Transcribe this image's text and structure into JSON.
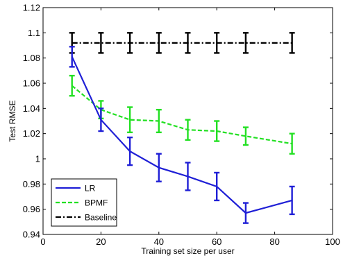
{
  "chart_data": {
    "type": "line",
    "title": "",
    "xlabel": "Training set size per user",
    "ylabel": "Test RMSE",
    "xlim": [
      0,
      100
    ],
    "ylim": [
      0.94,
      1.12
    ],
    "xticks": [
      0,
      20,
      40,
      60,
      80,
      100
    ],
    "xtick_labels": [
      "0",
      "20",
      "40",
      "60",
      "80",
      "100"
    ],
    "yticks": [
      0.94,
      0.96,
      0.98,
      1.0,
      1.02,
      1.04,
      1.06,
      1.08,
      1.1,
      1.12
    ],
    "ytick_labels": [
      "0.94",
      "0.96",
      "0.98",
      "1",
      "1.02",
      "1.04",
      "1.06",
      "1.08",
      "1.1",
      "1.12"
    ],
    "grid": false,
    "legend_position": "bottom-left",
    "x": [
      10,
      20,
      30,
      40,
      50,
      60,
      70,
      86
    ],
    "series": [
      {
        "name": "LR",
        "color": "#1f1fd6",
        "style": "solid",
        "values": [
          1.081,
          1.031,
          1.006,
          0.993,
          0.986,
          0.978,
          0.957,
          0.967
        ],
        "errors": [
          0.008,
          0.009,
          0.011,
          0.011,
          0.011,
          0.011,
          0.008,
          0.011
        ]
      },
      {
        "name": "BPMF",
        "color": "#22e022",
        "style": "dashed",
        "values": [
          1.058,
          1.039,
          1.031,
          1.03,
          1.023,
          1.022,
          1.018,
          1.012
        ],
        "errors": [
          0.008,
          0.007,
          0.01,
          0.009,
          0.008,
          0.008,
          0.007,
          0.008
        ]
      },
      {
        "name": "Baseline",
        "color": "#000000",
        "style": "dashdot",
        "values": [
          1.092,
          1.092,
          1.092,
          1.092,
          1.092,
          1.092,
          1.092,
          1.092
        ],
        "errors": [
          0.008,
          0.008,
          0.008,
          0.008,
          0.008,
          0.008,
          0.008,
          0.008
        ]
      }
    ]
  }
}
